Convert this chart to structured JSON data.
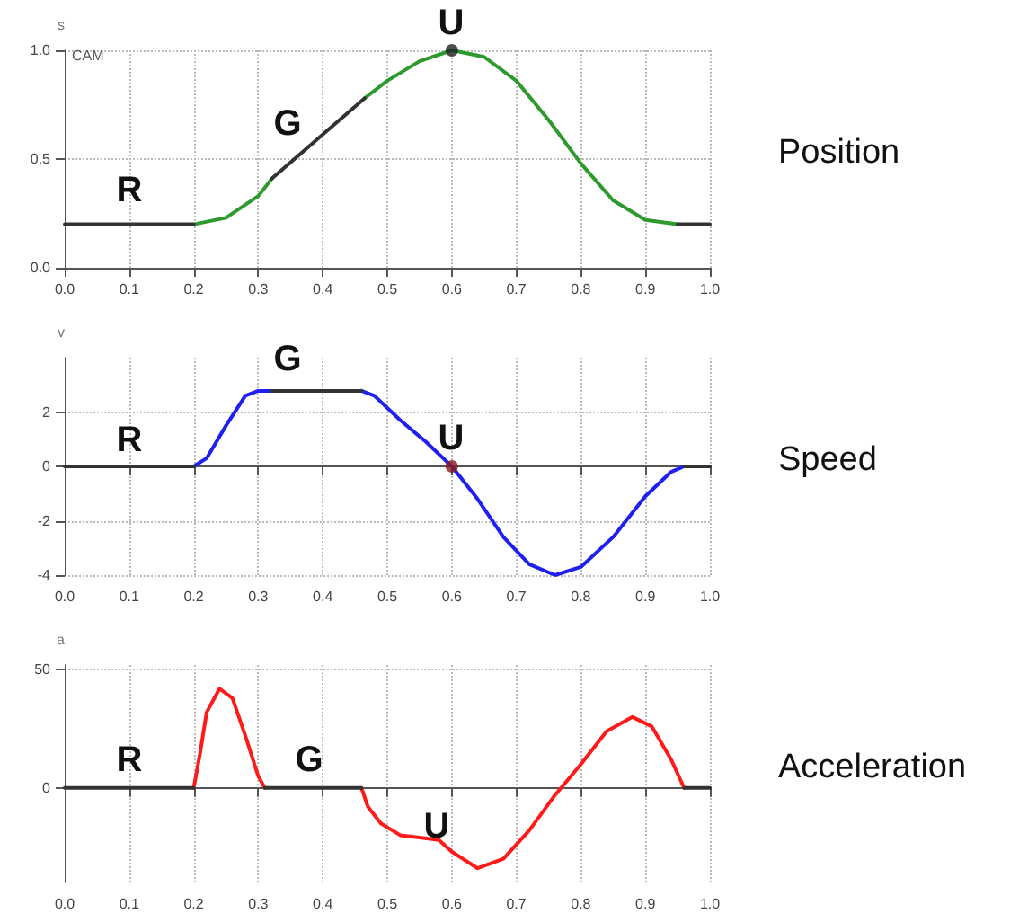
{
  "chart_data": [
    {
      "type": "line",
      "ylabel": "s",
      "annotations": [
        "CAM",
        "R",
        "G",
        "U",
        "Position"
      ],
      "xlim": [
        0,
        1
      ],
      "xticks": [
        {
          "value": 0,
          "label": "0.0"
        },
        {
          "value": 0.1,
          "label": "0.1"
        },
        {
          "value": 0.2,
          "label": "0.2"
        },
        {
          "value": 0.3,
          "label": "0.3"
        },
        {
          "value": 0.4,
          "label": "0.4"
        },
        {
          "value": 0.5,
          "label": "0.5"
        },
        {
          "value": 0.6,
          "label": "0.6"
        },
        {
          "value": 0.7,
          "label": "0.7"
        },
        {
          "value": 0.8,
          "label": "0.8"
        },
        {
          "value": 0.9,
          "label": "0.9"
        },
        {
          "value": 1,
          "label": "1.0"
        }
      ],
      "ylim": [
        0,
        1
      ],
      "yticks": [
        {
          "value": 0,
          "label": "0.0"
        },
        {
          "value": 0.5,
          "label": "0.5"
        },
        {
          "value": 1,
          "label": "1.0"
        }
      ],
      "grid": true,
      "marker": "none",
      "line_style": "solid",
      "series": [
        {
          "color": "#2e9a2e",
          "x": [
            0.2,
            0.25,
            0.3,
            0.321,
            0.4,
            0.465,
            0.5,
            0.55,
            0.6,
            0.65,
            0.7,
            0.75,
            0.8,
            0.85,
            0.9,
            0.95
          ],
          "values": [
            0.2,
            0.23,
            0.33,
            0.41,
            null,
            0.78,
            0.86,
            0.95,
            1.0,
            0.97,
            0.86,
            0.68,
            0.48,
            0.31,
            0.22,
            0.2
          ]
        },
        {
          "color": "#333333",
          "x": [
            0,
            0.2,
            0.25,
            0.321,
            0.465,
            0.7,
            0.95,
            1.0
          ],
          "values": [
            0.2,
            0.2,
            null,
            0.41,
            0.78,
            null,
            0.2,
            0.2
          ]
        },
        {
          "type": "scatter",
          "marker": "circle",
          "color": "#222222",
          "x": [
            0.6
          ],
          "values": [
            1.0
          ]
        }
      ]
    },
    {
      "type": "line",
      "ylabel": "v",
      "annotations": [
        "R",
        "G",
        "U",
        "Speed"
      ],
      "xlim": [
        0,
        1
      ],
      "xticks": [
        {
          "value": 0,
          "label": "0.0"
        },
        {
          "value": 0.1,
          "label": "0.1"
        },
        {
          "value": 0.2,
          "label": "0.2"
        },
        {
          "value": 0.3,
          "label": "0.3"
        },
        {
          "value": 0.4,
          "label": "0.4"
        },
        {
          "value": 0.5,
          "label": "0.5"
        },
        {
          "value": 0.6,
          "label": "0.6"
        },
        {
          "value": 0.7,
          "label": "0.7"
        },
        {
          "value": 0.8,
          "label": "0.8"
        },
        {
          "value": 0.9,
          "label": "0.9"
        },
        {
          "value": 1,
          "label": "1.0"
        }
      ],
      "ylim": [
        -4,
        4
      ],
      "yticks": [
        -4,
        -2,
        0,
        2
      ],
      "grid": true,
      "marker": "none",
      "line_style": "solid",
      "series": [
        {
          "color": "#2020ee",
          "x": [
            0.2,
            0.22,
            0.25,
            0.28,
            0.3,
            0.32,
            0.4,
            0.46,
            0.48,
            0.52,
            0.56,
            0.6,
            0.64,
            0.68,
            0.72,
            0.76,
            0.8,
            0.85,
            0.9,
            0.94,
            0.96
          ],
          "values": [
            0,
            0.3,
            1.5,
            2.6,
            2.78,
            2.78,
            null,
            2.78,
            2.6,
            1.7,
            0.9,
            0,
            -1.2,
            -2.6,
            -3.6,
            -4.0,
            -3.7,
            -2.6,
            -1.1,
            -0.2,
            0
          ]
        },
        {
          "color": "#333333",
          "x": [
            0,
            0.2,
            0.25,
            0.32,
            0.46,
            0.5,
            0.96,
            1.0
          ],
          "values": [
            0,
            0,
            null,
            2.78,
            2.78,
            null,
            0,
            0
          ]
        },
        {
          "type": "scatter",
          "marker": "circle",
          "color": "#8b1a1a",
          "x": [
            0.6
          ],
          "values": [
            0
          ]
        }
      ]
    },
    {
      "type": "line",
      "ylabel": "a",
      "annotations": [
        "R",
        "G",
        "U",
        "Acceleration"
      ],
      "xlim": [
        0,
        1
      ],
      "xticks": [
        {
          "value": 0,
          "label": "0.0"
        },
        {
          "value": 0.1,
          "label": "0.1"
        },
        {
          "value": 0.2,
          "label": "0.2"
        },
        {
          "value": 0.3,
          "label": "0.3"
        },
        {
          "value": 0.4,
          "label": "0.4"
        },
        {
          "value": 0.5,
          "label": "0.5"
        },
        {
          "value": 0.6,
          "label": "0.6"
        },
        {
          "value": 0.7,
          "label": "0.7"
        },
        {
          "value": 0.8,
          "label": "0.8"
        },
        {
          "value": 0.9,
          "label": "0.9"
        },
        {
          "value": 1,
          "label": "1.0"
        }
      ],
      "ylim": [
        -40,
        52
      ],
      "yticks": [
        0,
        50
      ],
      "grid": true,
      "marker": "none",
      "line_style": "solid",
      "series": [
        {
          "color": "#ff1a1a",
          "x": [
            0.2,
            0.21,
            0.22,
            0.24,
            0.26,
            0.28,
            0.3,
            0.31,
            0.4,
            0.46,
            0.47,
            0.49,
            0.52,
            0.55,
            0.58,
            0.6,
            0.64,
            0.68,
            0.72,
            0.76,
            0.8,
            0.84,
            0.88,
            0.91,
            0.94,
            0.96
          ],
          "values": [
            0,
            15,
            32,
            42,
            38,
            22,
            5,
            0,
            null,
            0,
            -8,
            -15,
            -20,
            -21,
            -22,
            -27,
            -34,
            -30,
            -18,
            -3,
            10,
            24,
            30,
            26,
            12,
            0
          ]
        },
        {
          "color": "#333333",
          "x": [
            0,
            0.2,
            0.25,
            0.31,
            0.46,
            0.5,
            0.96,
            1.0
          ],
          "values": [
            0,
            0,
            null,
            0,
            0,
            null,
            0,
            0
          ]
        }
      ]
    }
  ]
}
